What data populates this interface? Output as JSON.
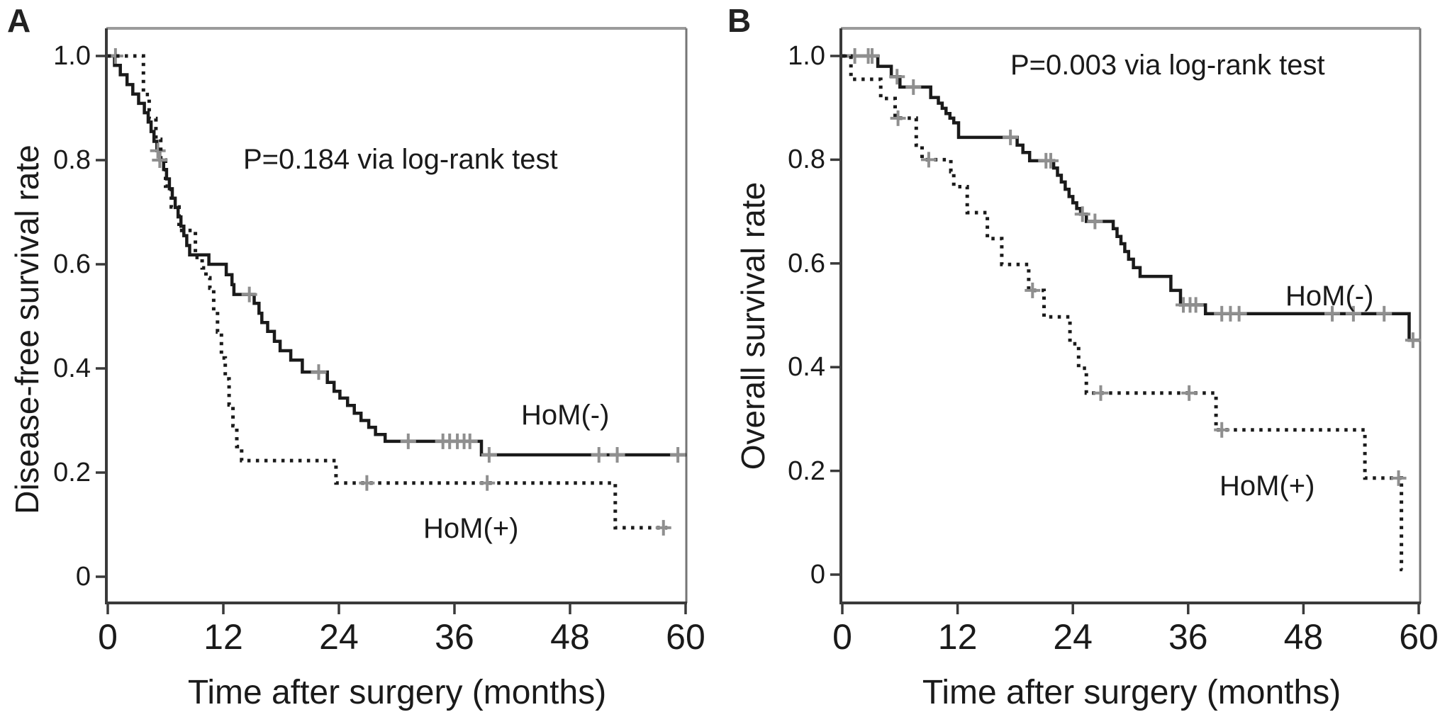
{
  "figure_title": "",
  "styles": {
    "curve_color": "#1a1a1a",
    "censor_color": "#8f8f8f",
    "axis_color": "#3a3a3a",
    "frame_top_color": "#9b9b9b",
    "frame_right_color": "#757575"
  },
  "chart_data": [
    {
      "type": "line",
      "km_subtype": "kaplan-meier-step",
      "panel_letter": "A",
      "p_annotation": "P=0.184 via log-rank test",
      "xlabel": "Time after surgery (months)",
      "ylabel": "Disease-free survival rate",
      "xlim": [
        0,
        60
      ],
      "ylim": [
        0,
        1.0
      ],
      "xticks": [
        "0",
        "12",
        "24",
        "36",
        "48",
        "60"
      ],
      "yticks": [
        "1.0",
        "0.8",
        "0.6",
        "0.4",
        "0.2",
        "0"
      ],
      "grid": false,
      "legend_position": "inline-labels",
      "series": [
        {
          "name": "HoM(-)",
          "line_style": "solid",
          "points": [
            [
              0,
              1.0
            ],
            [
              0.7,
              0.982
            ],
            [
              1.3,
              0.964
            ],
            [
              2.0,
              0.945
            ],
            [
              2.6,
              0.927
            ],
            [
              3.2,
              0.909
            ],
            [
              3.8,
              0.891
            ],
            [
              4.2,
              0.873
            ],
            [
              4.5,
              0.855
            ],
            [
              4.8,
              0.836
            ],
            [
              5.1,
              0.818
            ],
            [
              5.4,
              0.8
            ],
            [
              5.8,
              0.782
            ],
            [
              6.1,
              0.764
            ],
            [
              6.4,
              0.745
            ],
            [
              6.7,
              0.727
            ],
            [
              7.0,
              0.709
            ],
            [
              7.3,
              0.691
            ],
            [
              7.6,
              0.673
            ],
            [
              7.9,
              0.655
            ],
            [
              8.2,
              0.636
            ],
            [
              8.5,
              0.618
            ],
            [
              10.5,
              0.6
            ],
            [
              12.3,
              0.58
            ],
            [
              12.9,
              0.561
            ],
            [
              13.1,
              0.542
            ],
            [
              15.2,
              0.525
            ],
            [
              15.7,
              0.506
            ],
            [
              16.0,
              0.488
            ],
            [
              16.6,
              0.471
            ],
            [
              17.3,
              0.452
            ],
            [
              17.9,
              0.434
            ],
            [
              19.0,
              0.416
            ],
            [
              20.2,
              0.393
            ],
            [
              22.8,
              0.373
            ],
            [
              23.5,
              0.356
            ],
            [
              24.1,
              0.343
            ],
            [
              24.9,
              0.329
            ],
            [
              25.6,
              0.314
            ],
            [
              26.3,
              0.3
            ],
            [
              27.1,
              0.287
            ],
            [
              27.8,
              0.273
            ],
            [
              28.8,
              0.26
            ],
            [
              38.8,
              0.234
            ]
          ],
          "end_time": 60.1,
          "censor_marks": [
            [
              0.8,
              1.0
            ],
            [
              5.2,
              0.818
            ],
            [
              14.7,
              0.542
            ],
            [
              21.9,
              0.393
            ],
            [
              31.2,
              0.26
            ],
            [
              34.8,
              0.26
            ],
            [
              35.5,
              0.26
            ],
            [
              36.3,
              0.26
            ],
            [
              37.0,
              0.26
            ],
            [
              37.6,
              0.26
            ],
            [
              39.6,
              0.234
            ],
            [
              51.0,
              0.234
            ],
            [
              52.9,
              0.234
            ],
            [
              59.2,
              0.234
            ]
          ]
        },
        {
          "name": "HoM(+)",
          "line_style": "dotted",
          "points": [
            [
              0,
              1.0
            ],
            [
              3.7,
              0.926
            ],
            [
              4.3,
              0.88
            ],
            [
              5.0,
              0.84
            ],
            [
              5.5,
              0.8
            ],
            [
              6.0,
              0.75
            ],
            [
              6.6,
              0.71
            ],
            [
              7.4,
              0.665
            ],
            [
              9.1,
              0.613
            ],
            [
              9.8,
              0.593
            ],
            [
              10.2,
              0.574
            ],
            [
              10.6,
              0.554
            ],
            [
              11.0,
              0.51
            ],
            [
              11.4,
              0.47
            ],
            [
              11.8,
              0.42
            ],
            [
              12.2,
              0.38
            ],
            [
              12.6,
              0.33
            ],
            [
              13.0,
              0.29
            ],
            [
              13.4,
              0.25
            ],
            [
              13.9,
              0.223
            ],
            [
              23.7,
              0.18
            ],
            [
              52.7,
              0.094
            ]
          ],
          "end_time": 58.1,
          "censor_marks": [
            [
              5.4,
              0.8
            ],
            [
              26.9,
              0.18
            ],
            [
              39.4,
              0.18
            ],
            [
              57.7,
              0.094
            ]
          ]
        }
      ]
    },
    {
      "type": "line",
      "km_subtype": "kaplan-meier-step",
      "panel_letter": "B",
      "p_annotation": "P=0.003 via log-rank test",
      "xlabel": "Time after surgery (months)",
      "ylabel": "Overall survival rate",
      "xlim": [
        0,
        60
      ],
      "ylim": [
        0,
        1.0
      ],
      "xticks": [
        "0",
        "12",
        "24",
        "36",
        "48",
        "60"
      ],
      "yticks": [
        "1.0",
        "0.8",
        "0.6",
        "0.4",
        "0.2",
        "0"
      ],
      "grid": false,
      "legend_position": "inline-labels",
      "series": [
        {
          "name": "HoM(-)",
          "line_style": "solid",
          "points": [
            [
              0,
              1.0
            ],
            [
              3.7,
              0.98
            ],
            [
              5.1,
              0.96
            ],
            [
              6.0,
              0.94
            ],
            [
              9.2,
              0.92
            ],
            [
              10.0,
              0.909
            ],
            [
              10.4,
              0.899
            ],
            [
              10.8,
              0.889
            ],
            [
              11.2,
              0.88
            ],
            [
              11.6,
              0.871
            ],
            [
              12.1,
              0.843
            ],
            [
              18.2,
              0.828
            ],
            [
              18.8,
              0.814
            ],
            [
              19.5,
              0.798
            ],
            [
              22.0,
              0.784
            ],
            [
              22.4,
              0.77
            ],
            [
              22.8,
              0.757
            ],
            [
              23.2,
              0.743
            ],
            [
              23.6,
              0.729
            ],
            [
              24.0,
              0.717
            ],
            [
              24.4,
              0.706
            ],
            [
              24.8,
              0.695
            ],
            [
              25.4,
              0.681
            ],
            [
              28.2,
              0.667
            ],
            [
              28.6,
              0.652
            ],
            [
              29.0,
              0.638
            ],
            [
              29.4,
              0.623
            ],
            [
              29.8,
              0.608
            ],
            [
              30.3,
              0.592
            ],
            [
              31.0,
              0.575
            ],
            [
              34.2,
              0.548
            ],
            [
              35.2,
              0.52
            ],
            [
              37.8,
              0.503
            ],
            [
              59.0,
              0.452
            ]
          ],
          "end_time": 60.1,
          "censor_marks": [
            [
              1.3,
              1.0
            ],
            [
              2.7,
              1.0
            ],
            [
              3.1,
              1.0
            ],
            [
              5.7,
              0.96
            ],
            [
              7.4,
              0.94
            ],
            [
              17.5,
              0.843
            ],
            [
              21.2,
              0.798
            ],
            [
              21.7,
              0.798
            ],
            [
              25.0,
              0.695
            ],
            [
              26.3,
              0.681
            ],
            [
              35.5,
              0.52
            ],
            [
              36.2,
              0.52
            ],
            [
              36.8,
              0.52
            ],
            [
              39.5,
              0.503
            ],
            [
              40.4,
              0.503
            ],
            [
              41.3,
              0.503
            ],
            [
              51.0,
              0.503
            ],
            [
              53.2,
              0.503
            ],
            [
              56.4,
              0.503
            ],
            [
              59.4,
              0.452
            ]
          ]
        },
        {
          "name": "HoM(+)",
          "line_style": "dotted",
          "points": [
            [
              0,
              1.0
            ],
            [
              0.9,
              0.955
            ],
            [
              4.0,
              0.918
            ],
            [
              5.5,
              0.88
            ],
            [
              7.7,
              0.828
            ],
            [
              8.3,
              0.8
            ],
            [
              11.3,
              0.777
            ],
            [
              11.6,
              0.748
            ],
            [
              13.0,
              0.698
            ],
            [
              15.1,
              0.648
            ],
            [
              16.6,
              0.598
            ],
            [
              19.4,
              0.548
            ],
            [
              21.0,
              0.497
            ],
            [
              23.7,
              0.445
            ],
            [
              24.6,
              0.398
            ],
            [
              25.4,
              0.35
            ],
            [
              38.9,
              0.279
            ],
            [
              54.4,
              0.186
            ],
            [
              58.2,
              0.01
            ]
          ],
          "end_time": 58.3,
          "censor_marks": [
            [
              5.8,
              0.88
            ],
            [
              9.0,
              0.8
            ],
            [
              19.8,
              0.548
            ],
            [
              26.9,
              0.35
            ],
            [
              36.1,
              0.35
            ],
            [
              39.5,
              0.279
            ],
            [
              57.9,
              0.186
            ]
          ]
        }
      ]
    }
  ]
}
